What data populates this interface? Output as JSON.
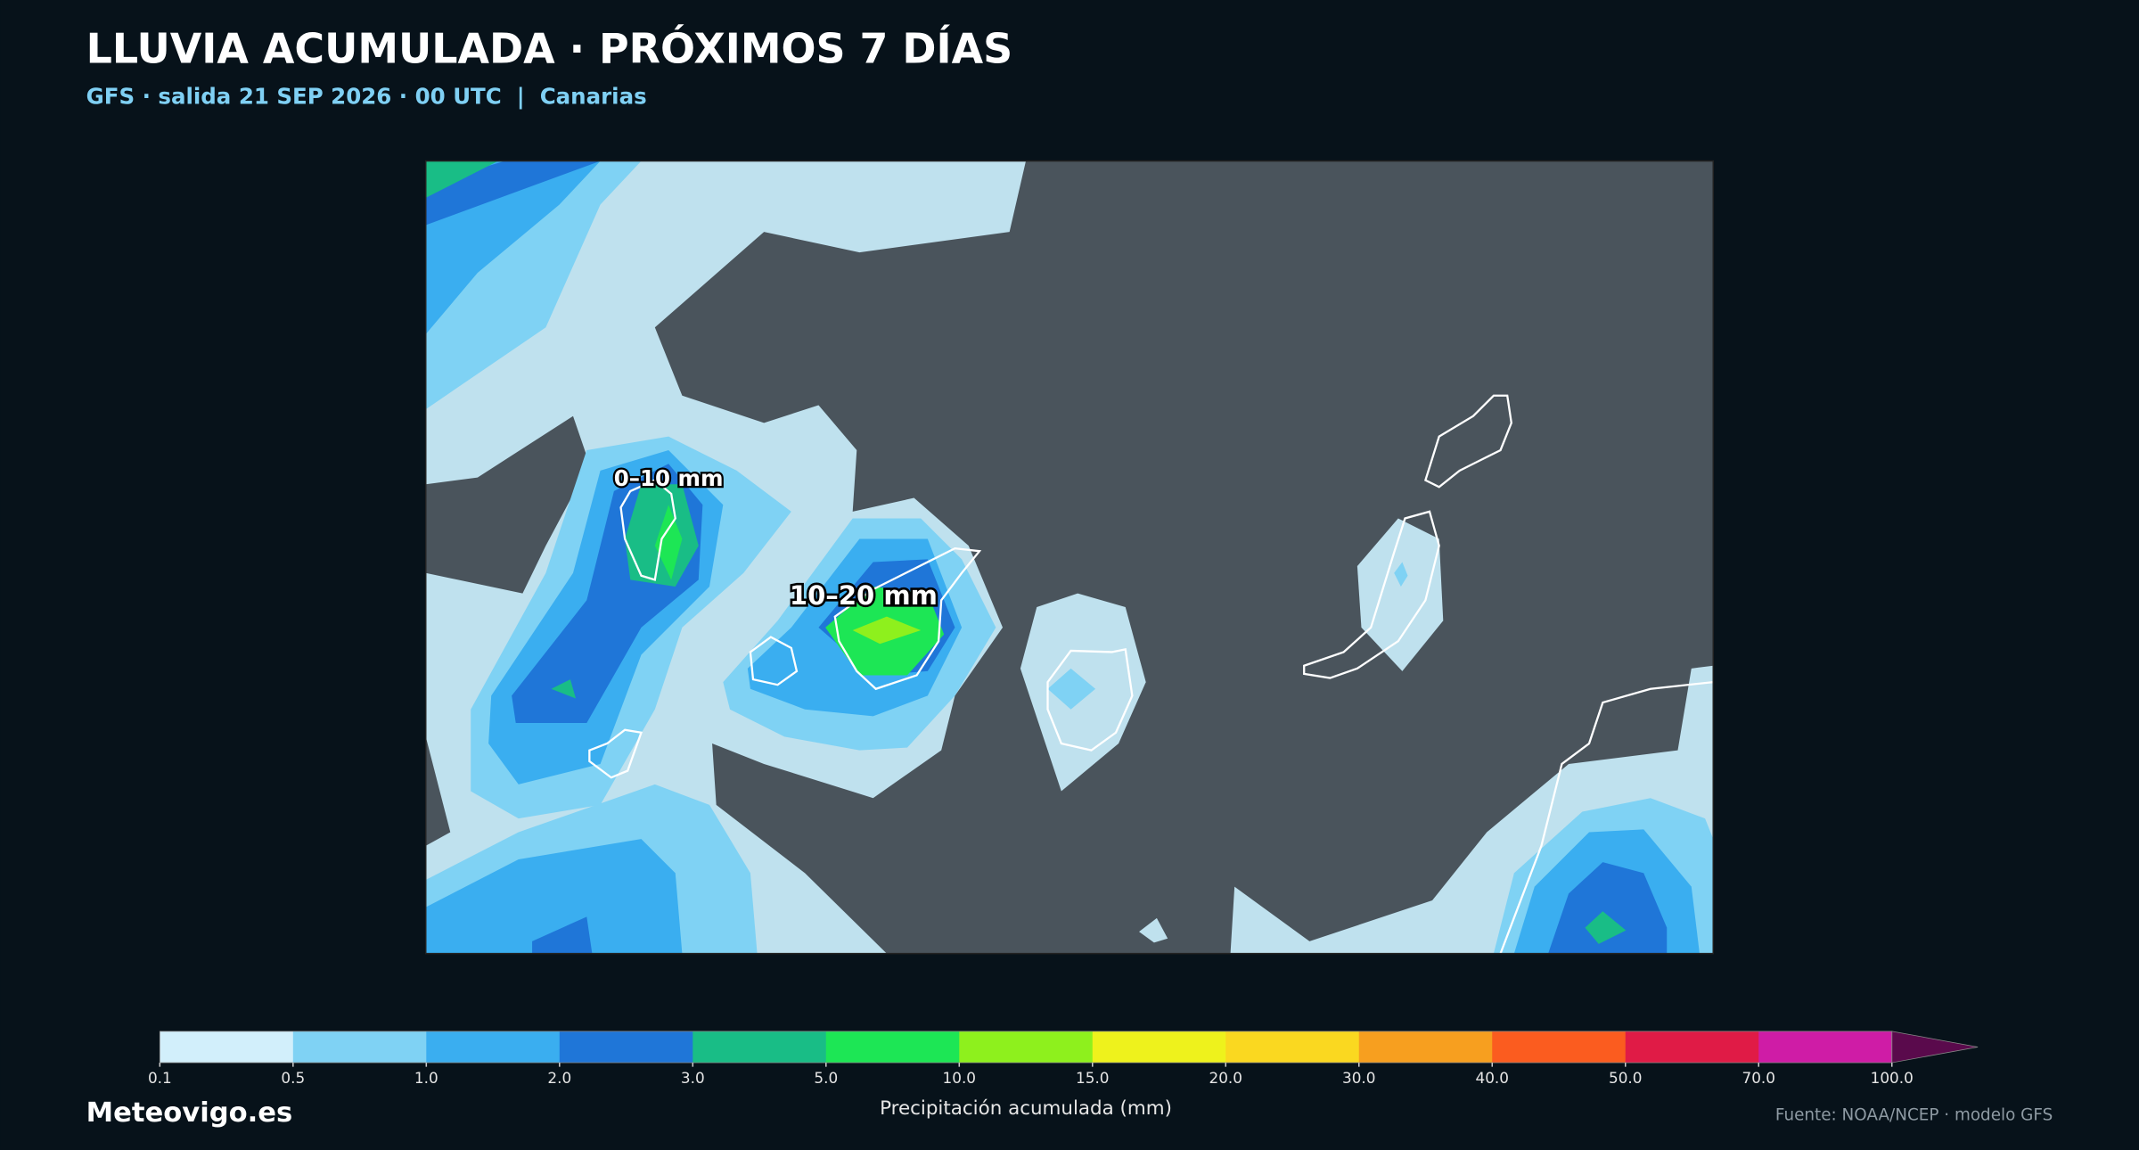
{
  "header": {
    "title": "LLUVIA ACUMULADA · PRÓXIMOS 7 DÍAS",
    "subtitle": "GFS · salida 21 SEP 2026 · 00 UTC  |  Canarias"
  },
  "map": {
    "labels": [
      "0–10 mm",
      "10–20 mm"
    ]
  },
  "colorbar": {
    "label": "Precipitación acumulada (mm)",
    "levels": [
      {
        "value": 0.1,
        "label": "0.1"
      },
      {
        "value": 0.5,
        "label": "0.5"
      },
      {
        "value": 1,
        "label": "1.0"
      },
      {
        "value": 2,
        "label": "2.0"
      },
      {
        "value": 3,
        "label": "3.0"
      },
      {
        "value": 5,
        "label": "5.0"
      },
      {
        "value": 10,
        "label": "10.0"
      },
      {
        "value": 15,
        "label": "15.0"
      },
      {
        "value": 20,
        "label": "20.0"
      },
      {
        "value": 30,
        "label": "30.0"
      },
      {
        "value": 40,
        "label": "40.0"
      },
      {
        "value": 50,
        "label": "50.0"
      },
      {
        "value": 70,
        "label": "70.0"
      },
      {
        "value": 100,
        "label": "100.0"
      }
    ],
    "colors": [
      "#d2effb",
      "#7fd2f4",
      "#3aaef0",
      "#1f76d8",
      "#19bd86",
      "#1de655",
      "#8ef01d",
      "#eef21c",
      "#fad820",
      "#f79f1f",
      "#fb5c1f",
      "#e01b46",
      "#cf1ca6"
    ],
    "extend_color": "#5a0a4c"
  },
  "footer": {
    "brand": "Meteovigo.es",
    "source": "Fuente: NOAA/NCEP · modelo GFS"
  }
}
